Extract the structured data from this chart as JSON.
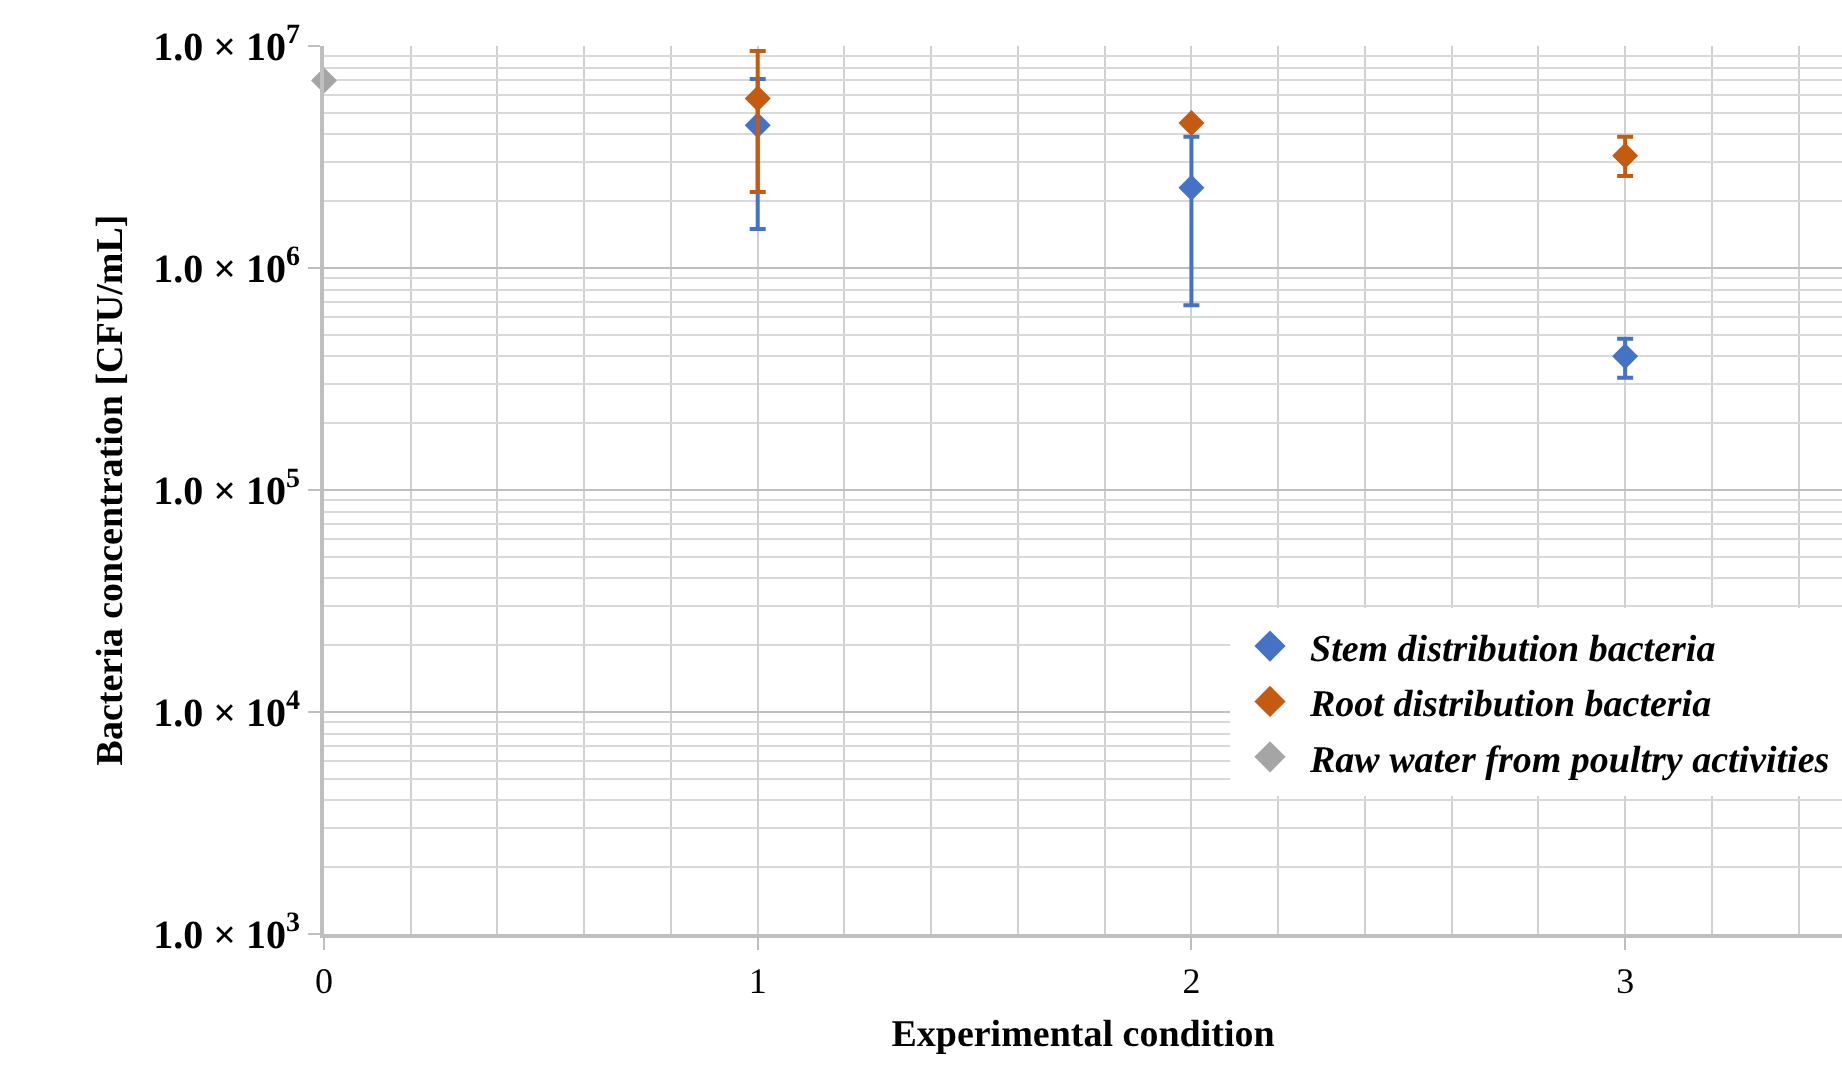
{
  "chart_data": {
    "type": "scatter",
    "xlabel": "Experimental condition",
    "ylabel": "Bacteria concentration [CFU/mL]",
    "log": "y",
    "grid": true,
    "legend": "bottom right",
    "marker": "diamond",
    "xlim": [
      0,
      3.5
    ],
    "xticks": [
      0,
      1,
      2,
      3
    ],
    "ylim": [
      1000,
      10000000
    ],
    "yticks": [
      {
        "value": 1000,
        "label": "1.0 × 10$^{3}$"
      },
      {
        "value": 10000,
        "label": "1.0 × 10$^{4}$"
      },
      {
        "value": 100000,
        "label": "1.0 × 10$^{5}$"
      },
      {
        "value": 1000000,
        "label": "1.0 × 10$^{6}$"
      },
      {
        "value": 10000000,
        "label": "1.0 × 10$^{7}$"
      }
    ],
    "series": [
      {
        "name": "Stem distribution bacteria",
        "color": "#4472c4",
        "x": [
          1,
          2,
          3
        ],
        "values": [
          4400000,
          2300000,
          400000
        ],
        "errors": [
          [
            1500000,
            7100000
          ],
          [
            680000,
            3900000
          ],
          [
            320000,
            480000
          ]
        ]
      },
      {
        "name": "Root distribution bacteria",
        "color": "#c55a11",
        "x": [
          1,
          2,
          3
        ],
        "values": [
          5800000,
          4500000,
          3200000
        ],
        "errors": [
          [
            2200000,
            9500000
          ],
          null,
          [
            2600000,
            3900000
          ]
        ]
      },
      {
        "name": "Raw water from poultry activities",
        "color": "#a5a5a5",
        "x": [
          0
        ],
        "values": [
          7000000
        ]
      }
    ]
  }
}
